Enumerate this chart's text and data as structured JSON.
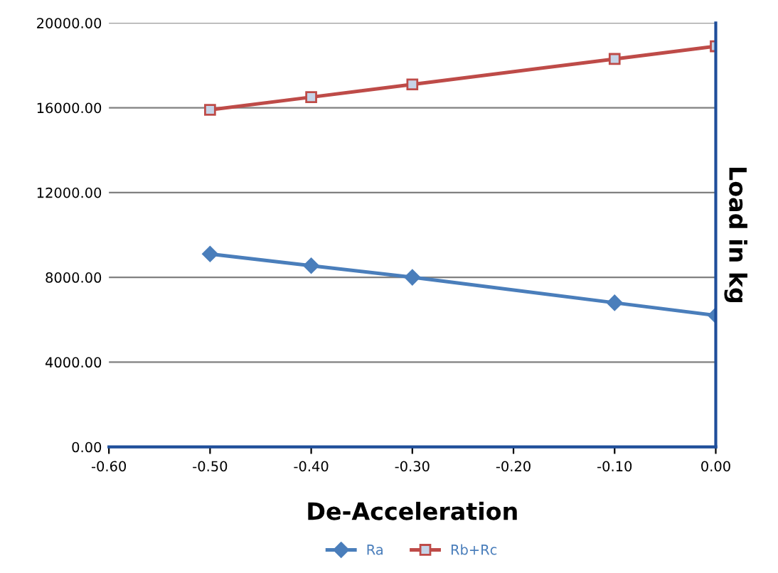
{
  "chart_data": {
    "type": "line",
    "xlabel": "De-Acceleration",
    "ylabel": "Load in kg",
    "x": [
      -0.5,
      -0.4,
      -0.3,
      -0.1,
      0.0
    ],
    "series": [
      {
        "name": "Ra",
        "color": "#4a7ebb",
        "marker": "diamond",
        "values": [
          9100,
          8550,
          8000,
          6800,
          6200
        ]
      },
      {
        "name": "Rb+Rc",
        "color": "#be4b48",
        "marker": "square",
        "values": [
          15900,
          16500,
          17100,
          18300,
          18900
        ]
      }
    ],
    "xlim": [
      -0.6,
      0.0
    ],
    "xticks": [
      {
        "value": -0.6,
        "label": "-0.60"
      },
      {
        "value": -0.5,
        "label": "-0.50"
      },
      {
        "value": -0.4,
        "label": "-0.40"
      },
      {
        "value": -0.3,
        "label": "-0.30"
      },
      {
        "value": -0.2,
        "label": "-0.20"
      },
      {
        "value": -0.1,
        "label": "-0.10"
      },
      {
        "value": 0.0,
        "label": "0.00"
      }
    ],
    "ylim": [
      0,
      20000
    ],
    "yticks": [
      {
        "value": 0,
        "label": "0.00"
      },
      {
        "value": 4000,
        "label": "4000.00"
      },
      {
        "value": 8000,
        "label": "8000.00"
      },
      {
        "value": 12000,
        "label": "12000.00"
      },
      {
        "value": 16000,
        "label": "16000.00"
      },
      {
        "value": 20000,
        "label": "20000.00"
      }
    ],
    "grid": "y",
    "legend": "bottom"
  }
}
